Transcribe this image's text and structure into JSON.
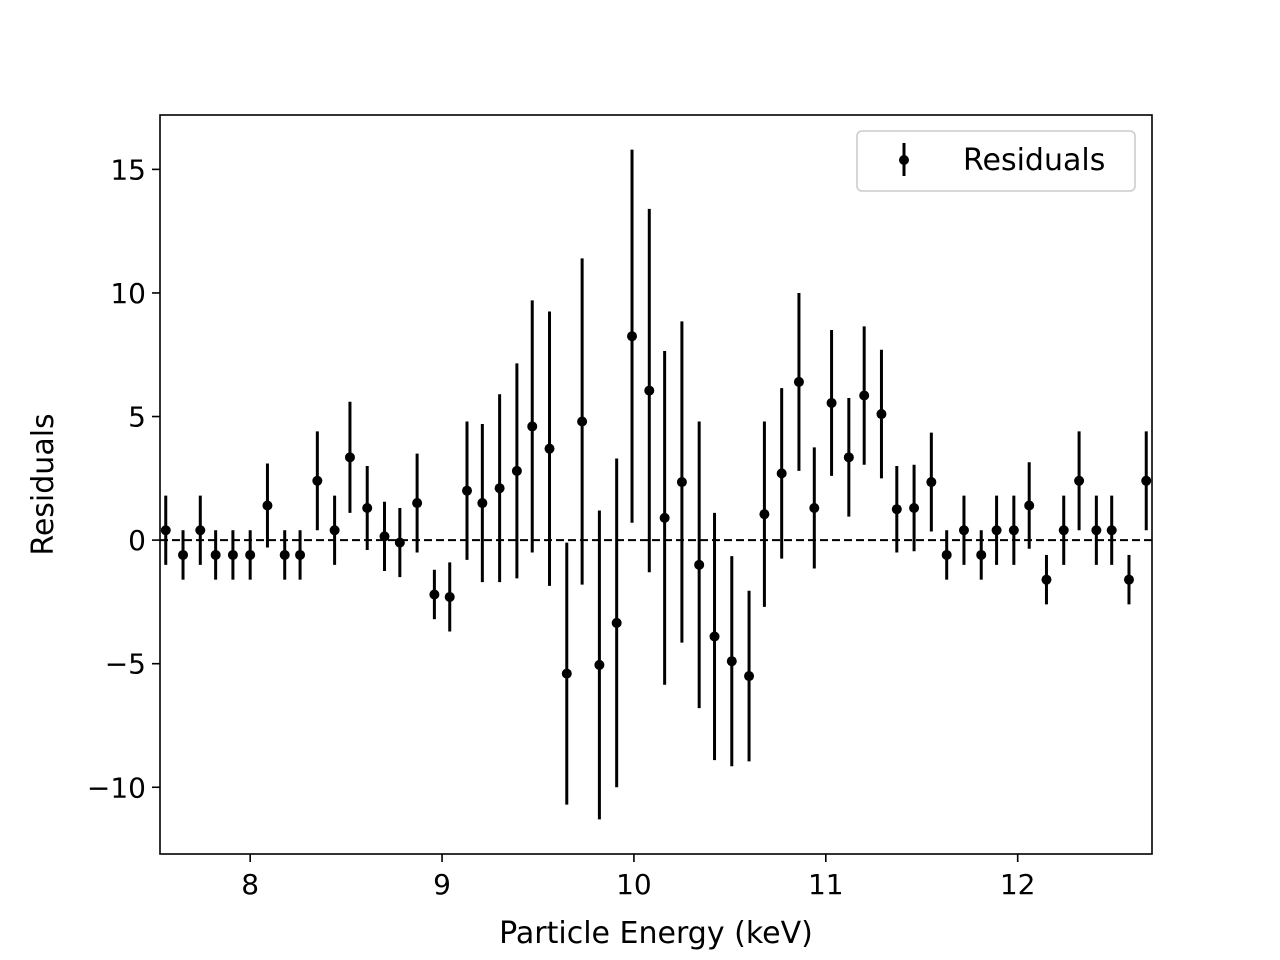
{
  "chart_data": {
    "type": "scatter",
    "title": "",
    "xlabel": "Particle Energy (keV)",
    "ylabel": "Residuals",
    "xlim": [
      7.53,
      12.7
    ],
    "ylim": [
      -12.7,
      17.2
    ],
    "xticks": [
      8,
      9,
      10,
      11,
      12
    ],
    "yticks": [
      -10,
      -5,
      0,
      5,
      10,
      15
    ],
    "xtick_labels": [
      "8",
      "9",
      "10",
      "11",
      "12"
    ],
    "ytick_labels": [
      "−10",
      "−5",
      "0",
      "5",
      "10",
      "15"
    ],
    "reference_line": {
      "y": 0,
      "style": "dashed"
    },
    "grid": false,
    "legend": {
      "position": "top-right",
      "entries": [
        "Residuals"
      ]
    },
    "series": [
      {
        "name": "Residuals",
        "color": "#000000",
        "marker": "circle",
        "points": [
          {
            "x": 7.56,
            "y": 0.4,
            "err": 1.4
          },
          {
            "x": 7.65,
            "y": -0.6,
            "err": 1.0
          },
          {
            "x": 7.74,
            "y": 0.4,
            "err": 1.4
          },
          {
            "x": 7.82,
            "y": -0.6,
            "err": 1.0
          },
          {
            "x": 7.91,
            "y": -0.6,
            "err": 1.0
          },
          {
            "x": 8.0,
            "y": -0.6,
            "err": 1.0
          },
          {
            "x": 8.09,
            "y": 1.4,
            "err": 1.7
          },
          {
            "x": 8.18,
            "y": -0.6,
            "err": 1.0
          },
          {
            "x": 8.26,
            "y": -0.6,
            "err": 1.0
          },
          {
            "x": 8.35,
            "y": 2.4,
            "err": 2.0
          },
          {
            "x": 8.44,
            "y": 0.4,
            "err": 1.4
          },
          {
            "x": 8.52,
            "y": 3.35,
            "err": 2.25
          },
          {
            "x": 8.61,
            "y": 1.3,
            "err": 1.7
          },
          {
            "x": 8.7,
            "y": 0.15,
            "err": 1.4
          },
          {
            "x": 8.78,
            "y": -0.1,
            "err": 1.4
          },
          {
            "x": 8.87,
            "y": 1.5,
            "err": 2.0
          },
          {
            "x": 8.96,
            "y": -2.2,
            "err": 1.0
          },
          {
            "x": 9.04,
            "y": -2.3,
            "err": 1.4
          },
          {
            "x": 9.13,
            "y": 2.0,
            "err": 2.8
          },
          {
            "x": 9.21,
            "y": 1.5,
            "err": 3.2
          },
          {
            "x": 9.3,
            "y": 2.1,
            "err": 3.8
          },
          {
            "x": 9.39,
            "y": 2.8,
            "err": 4.35
          },
          {
            "x": 9.47,
            "y": 4.6,
            "err": 5.1
          },
          {
            "x": 9.56,
            "y": 3.7,
            "err": 5.55
          },
          {
            "x": 9.65,
            "y": -5.4,
            "err": 5.3
          },
          {
            "x": 9.73,
            "y": 4.8,
            "err": 6.6
          },
          {
            "x": 9.82,
            "y": -5.05,
            "err": 6.25
          },
          {
            "x": 9.91,
            "y": -3.35,
            "err": 6.65
          },
          {
            "x": 9.99,
            "y": 8.25,
            "err": 7.55
          },
          {
            "x": 10.08,
            "y": 6.05,
            "err": 7.35
          },
          {
            "x": 10.16,
            "y": 0.9,
            "err": 6.75
          },
          {
            "x": 10.25,
            "y": 2.35,
            "err": 6.5
          },
          {
            "x": 10.34,
            "y": -1.0,
            "err": 5.8
          },
          {
            "x": 10.42,
            "y": -3.9,
            "err": 5.0
          },
          {
            "x": 10.51,
            "y": -4.9,
            "err": 4.25
          },
          {
            "x": 10.6,
            "y": -5.5,
            "err": 3.45
          },
          {
            "x": 10.68,
            "y": 1.05,
            "err": 3.75
          },
          {
            "x": 10.77,
            "y": 2.7,
            "err": 3.45
          },
          {
            "x": 10.86,
            "y": 6.4,
            "err": 3.6
          },
          {
            "x": 10.94,
            "y": 1.3,
            "err": 2.45
          },
          {
            "x": 11.03,
            "y": 5.55,
            "err": 2.95
          },
          {
            "x": 11.12,
            "y": 3.35,
            "err": 2.4
          },
          {
            "x": 11.2,
            "y": 5.85,
            "err": 2.8
          },
          {
            "x": 11.29,
            "y": 5.1,
            "err": 2.6
          },
          {
            "x": 11.37,
            "y": 1.25,
            "err": 1.75
          },
          {
            "x": 11.46,
            "y": 1.3,
            "err": 1.75
          },
          {
            "x": 11.55,
            "y": 2.35,
            "err": 2.0
          },
          {
            "x": 11.63,
            "y": -0.6,
            "err": 1.0
          },
          {
            "x": 11.72,
            "y": 0.4,
            "err": 1.4
          },
          {
            "x": 11.81,
            "y": -0.6,
            "err": 1.0
          },
          {
            "x": 11.89,
            "y": 0.4,
            "err": 1.4
          },
          {
            "x": 11.98,
            "y": 0.4,
            "err": 1.4
          },
          {
            "x": 12.06,
            "y": 1.4,
            "err": 1.75
          },
          {
            "x": 12.15,
            "y": -1.6,
            "err": 1.0
          },
          {
            "x": 12.24,
            "y": 0.4,
            "err": 1.4
          },
          {
            "x": 12.32,
            "y": 2.4,
            "err": 2.0
          },
          {
            "x": 12.41,
            "y": 0.4,
            "err": 1.4
          },
          {
            "x": 12.49,
            "y": 0.4,
            "err": 1.4
          },
          {
            "x": 12.58,
            "y": -1.6,
            "err": 1.0
          },
          {
            "x": 12.67,
            "y": 2.4,
            "err": 2.0
          }
        ]
      }
    ]
  }
}
